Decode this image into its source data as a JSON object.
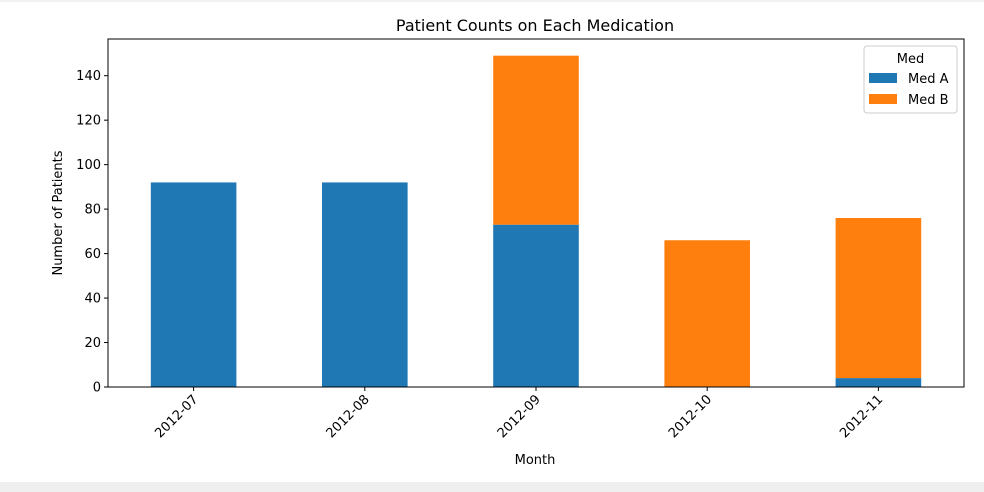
{
  "chart_data": {
    "type": "bar",
    "stacked": true,
    "title": "Patient Counts on Each Medication",
    "xlabel": "Month",
    "ylabel": "Number of Patients",
    "categories": [
      "2012-07",
      "2012-08",
      "2012-09",
      "2012-10",
      "2012-11"
    ],
    "series": [
      {
        "name": "Med A",
        "color": "#1f77b4",
        "values": [
          92,
          92,
          73,
          0,
          4
        ]
      },
      {
        "name": "Med B",
        "color": "#ff7f0e",
        "values": [
          0,
          0,
          76,
          66,
          72
        ]
      }
    ],
    "ylim": [
      0,
      156.5
    ],
    "yticks": [
      0,
      20,
      40,
      60,
      80,
      100,
      120,
      140
    ],
    "legend": {
      "title": "Med",
      "position": "top-right"
    },
    "grid": false
  }
}
